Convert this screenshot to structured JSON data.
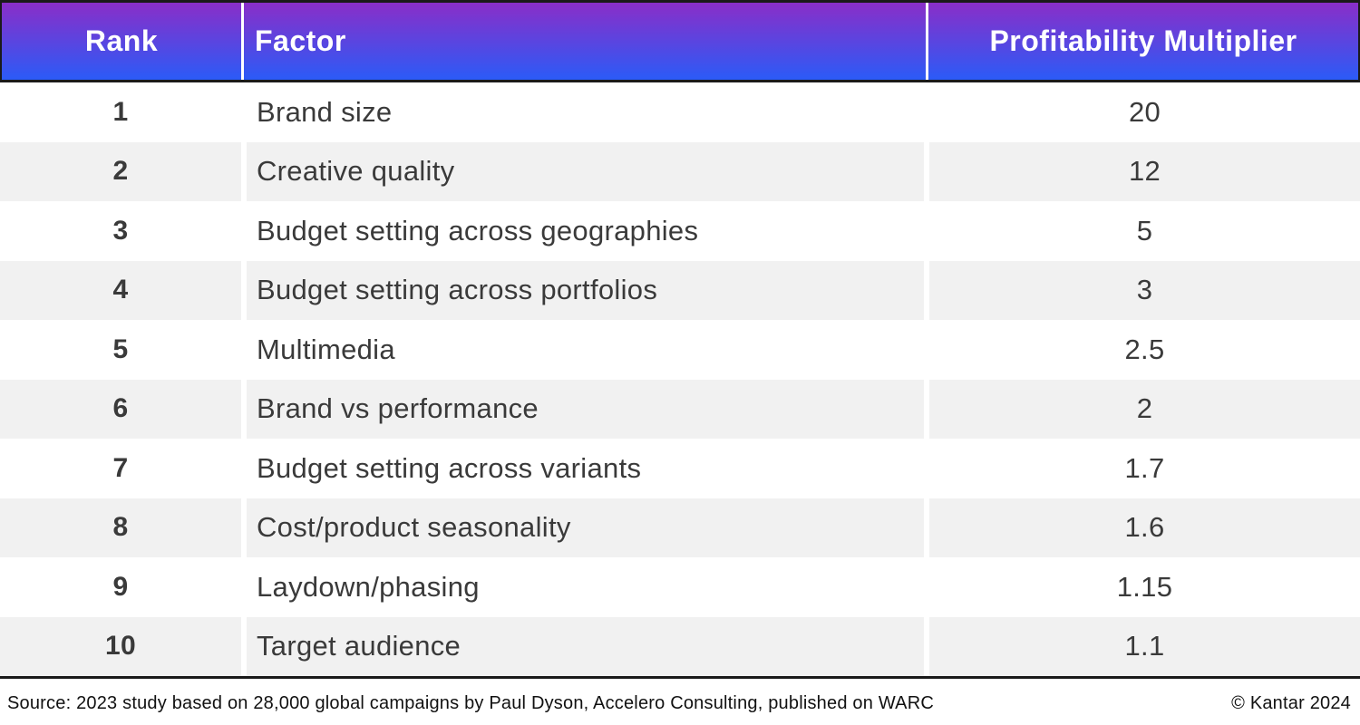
{
  "table": {
    "columns": [
      "Rank",
      "Factor",
      "Profitability Multiplier"
    ],
    "rows": [
      {
        "rank": "1",
        "factor": "Brand size",
        "multiplier": "20"
      },
      {
        "rank": "2",
        "factor": "Creative quality",
        "multiplier": "12"
      },
      {
        "rank": "3",
        "factor": "Budget setting across geographies",
        "multiplier": "5"
      },
      {
        "rank": "4",
        "factor": "Budget setting across portfolios",
        "multiplier": "3"
      },
      {
        "rank": "5",
        "factor": "Multimedia",
        "multiplier": "2.5"
      },
      {
        "rank": "6",
        "factor": "Brand vs performance",
        "multiplier": "2"
      },
      {
        "rank": "7",
        "factor": "Budget setting across variants",
        "multiplier": "1.7"
      },
      {
        "rank": "8",
        "factor": "Cost/product seasonality",
        "multiplier": "1.6"
      },
      {
        "rank": "9",
        "factor": "Laydown/phasing",
        "multiplier": "1.15"
      },
      {
        "rank": "10",
        "factor": "Target audience",
        "multiplier": "1.1"
      }
    ]
  },
  "footer": {
    "source": "Source: 2023 study based on 28,000 global campaigns by Paul Dyson, Accelero Consulting, published on WARC",
    "copyright": "© Kantar 2024"
  },
  "colors": {
    "header_gradient_top": "#8A2EC8",
    "header_gradient_bottom": "#2B5BF7",
    "row_alt": "#F1F1F1",
    "border": "#1A1A1A",
    "text": "#3A3A3A",
    "footer_text": "#111111"
  },
  "chart_data": {
    "type": "table",
    "title": "",
    "columns": [
      "Rank",
      "Factor",
      "Profitability Multiplier"
    ],
    "rows": [
      [
        1,
        "Brand size",
        20
      ],
      [
        2,
        "Creative quality",
        12
      ],
      [
        3,
        "Budget setting across geographies",
        5
      ],
      [
        4,
        "Budget setting across portfolios",
        3
      ],
      [
        5,
        "Multimedia",
        2.5
      ],
      [
        6,
        "Brand vs performance",
        2
      ],
      [
        7,
        "Budget setting across variants",
        1.7
      ],
      [
        8,
        "Cost/product seasonality",
        1.6
      ],
      [
        9,
        "Laydown/phasing",
        1.15
      ],
      [
        10,
        "Target audience",
        1.1
      ]
    ],
    "source": "Source: 2023 study based on 28,000 global campaigns by Paul Dyson, Accelero Consulting, published on WARC",
    "attribution": "© Kantar 2024"
  }
}
